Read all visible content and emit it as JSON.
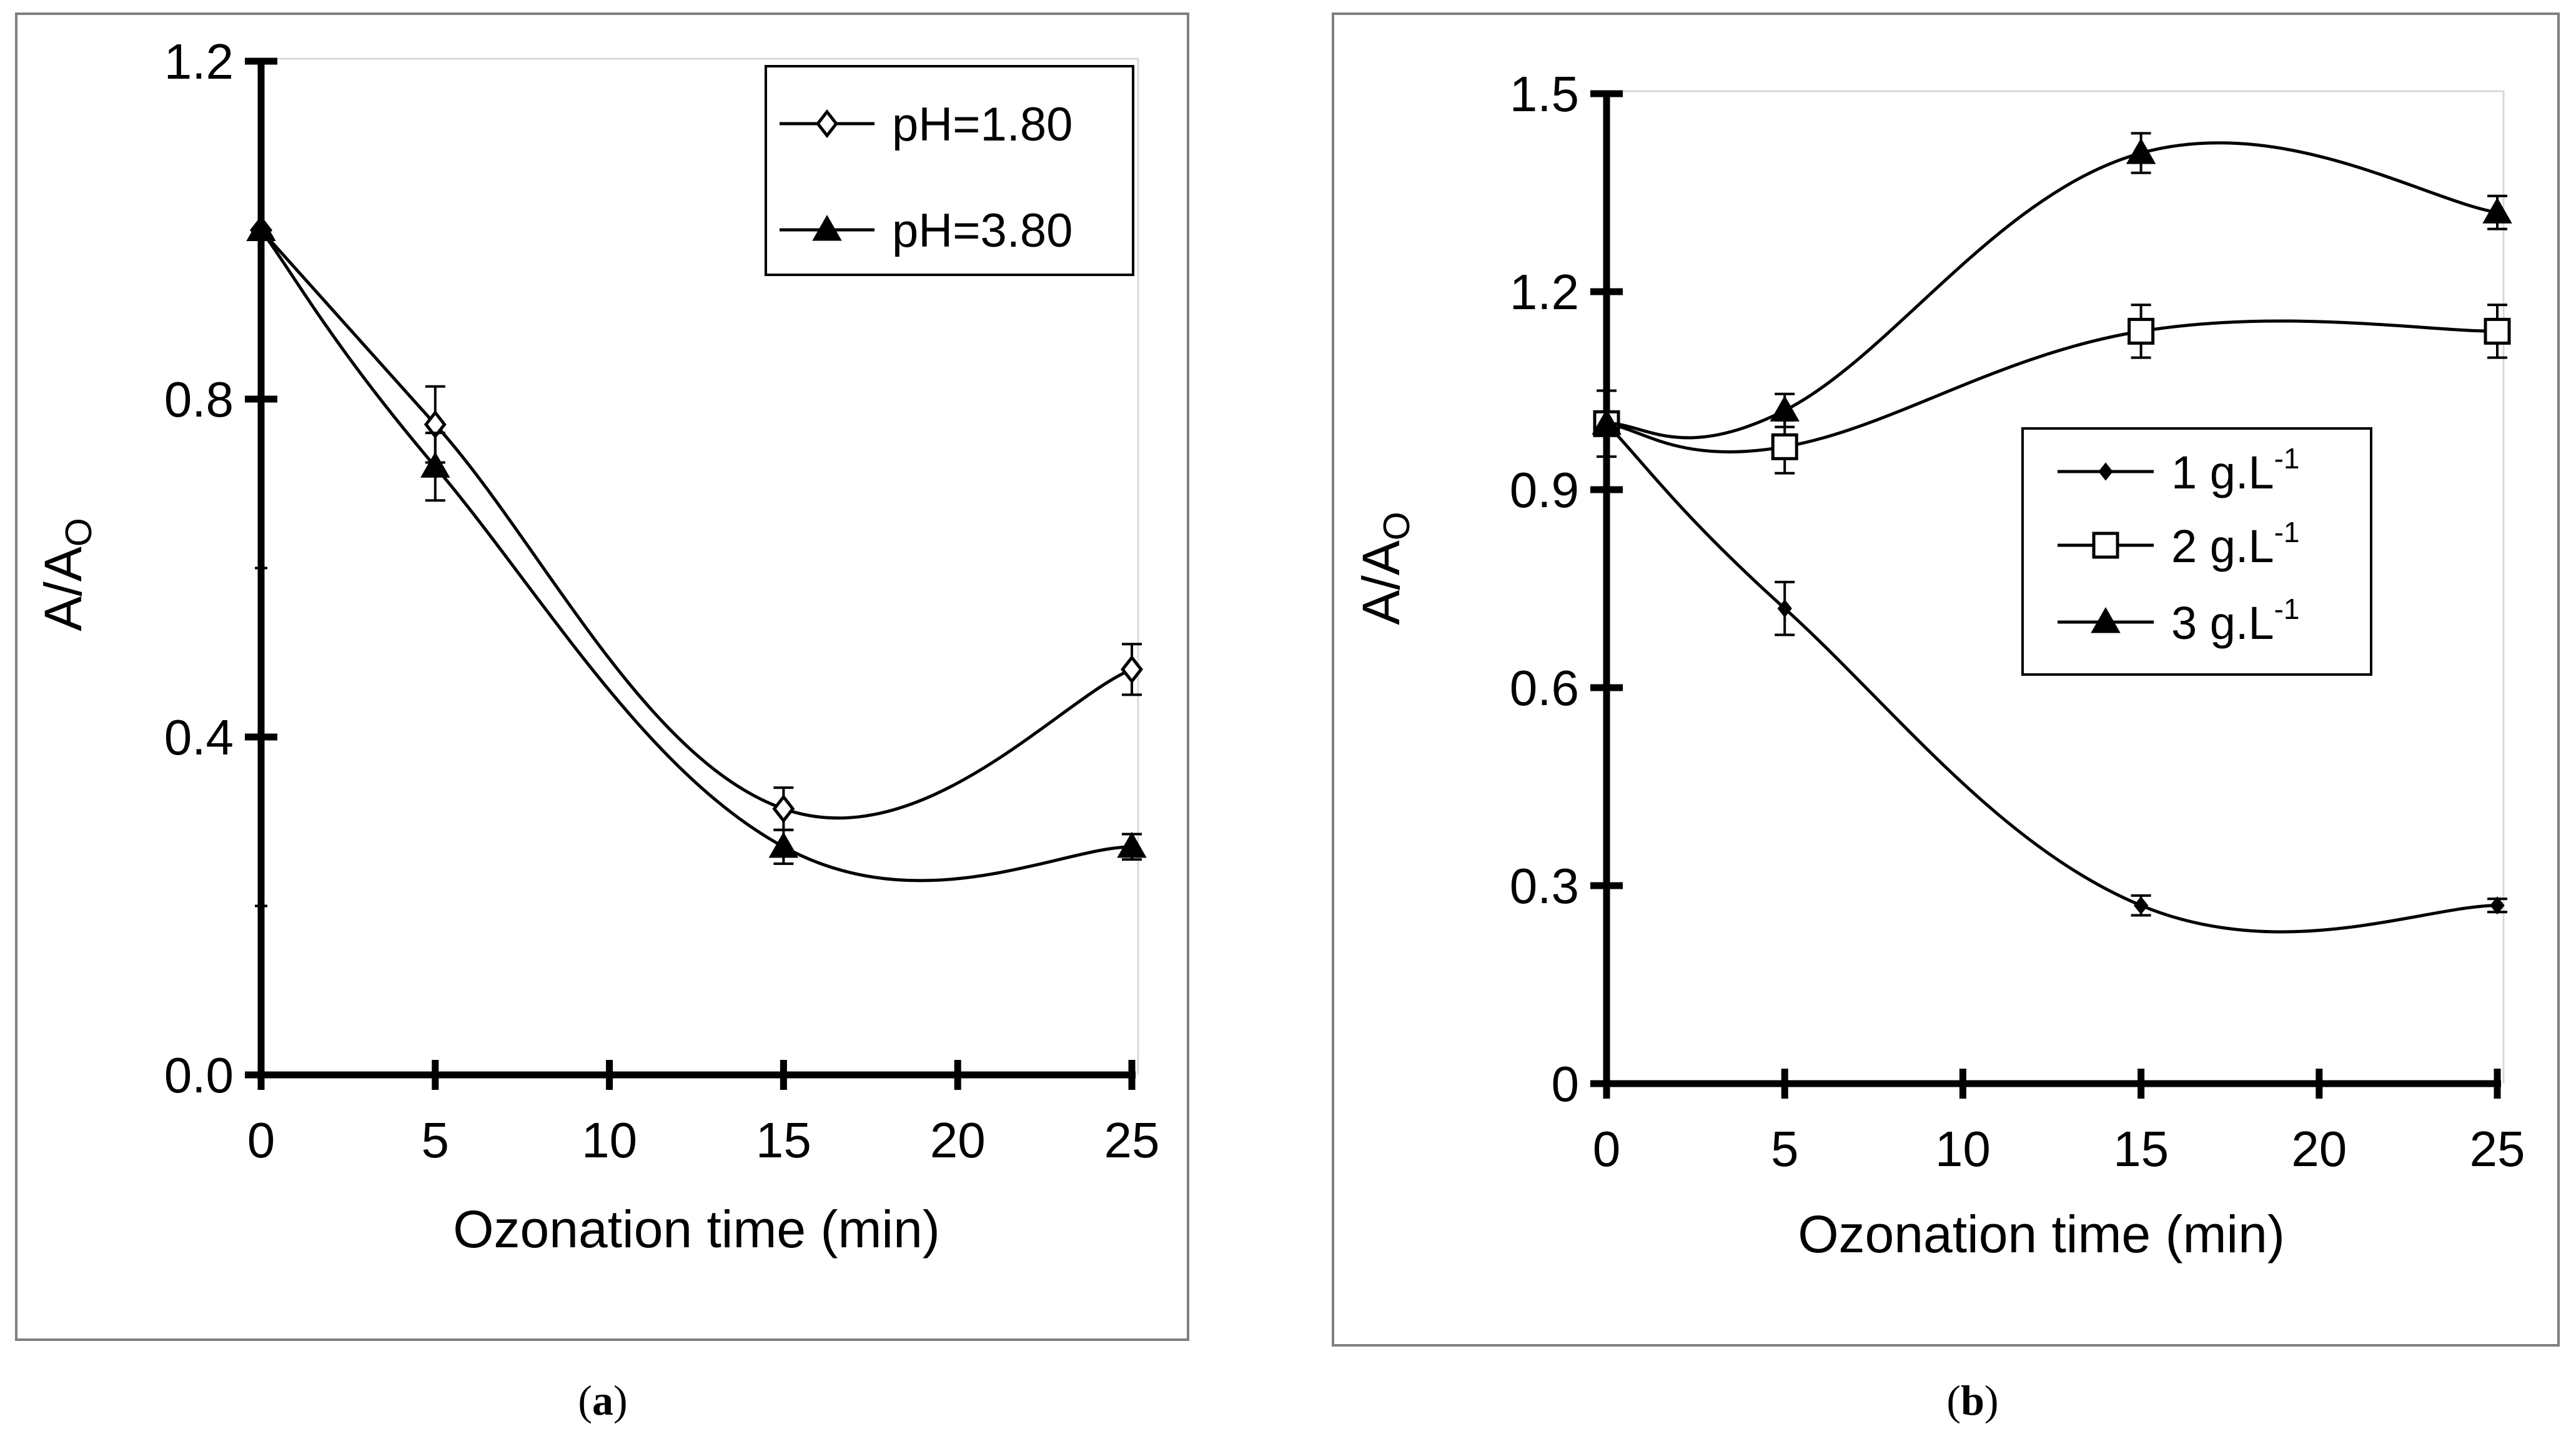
{
  "chart_data": [
    {
      "type": "line",
      "panel_label": "a",
      "xlabel": "Ozonation time (min)",
      "ylabel_main": "A/A",
      "ylabel_sub": "O",
      "xlim": [
        0,
        25
      ],
      "ylim": [
        0,
        1.2
      ],
      "xticks": [
        0,
        5,
        10,
        15,
        20,
        25
      ],
      "xtick_labels": [
        "0",
        "5",
        "10",
        "15",
        "20",
        "25"
      ],
      "yticks": [
        0,
        0.4,
        0.8,
        1.2
      ],
      "ytick_labels": [
        "0.0",
        "0.4",
        "0.8",
        "1.2"
      ],
      "legend_position": "top-right",
      "series": [
        {
          "name": "pH=1.80",
          "marker": "diamond-open",
          "x": [
            0,
            5,
            15,
            25
          ],
          "values": [
            1.0,
            0.77,
            0.315,
            0.48
          ],
          "errors": [
            0.0,
            0.045,
            0.025,
            0.03
          ]
        },
        {
          "name": "pH=3.80",
          "marker": "triangle-filled",
          "x": [
            0,
            5,
            15,
            25
          ],
          "values": [
            1.0,
            0.72,
            0.27,
            0.27
          ],
          "errors": [
            0.0,
            0.04,
            0.02,
            0.015
          ]
        }
      ]
    },
    {
      "type": "line",
      "panel_label": "b",
      "xlabel": "Ozonation time (min)",
      "ylabel_main": "A/A",
      "ylabel_sub": "O",
      "xlim": [
        0,
        25
      ],
      "ylim": [
        0,
        1.5
      ],
      "xticks": [
        0,
        5,
        10,
        15,
        20,
        25
      ],
      "xtick_labels": [
        "0",
        "5",
        "10",
        "15",
        "20",
        "25"
      ],
      "yticks": [
        0,
        0.3,
        0.6,
        0.9,
        1.2,
        1.5
      ],
      "ytick_labels": [
        "0",
        "0.3",
        "0.6",
        "0.9",
        "1.2",
        "1.5"
      ],
      "legend_position": "center-right",
      "series": [
        {
          "name": "1 g.L",
          "sup": "-1",
          "marker": "diamond-small-filled",
          "x": [
            0,
            5,
            15,
            25
          ],
          "values": [
            1.0,
            0.72,
            0.27,
            0.27
          ],
          "errors": [
            0.0,
            0.04,
            0.015,
            0.01
          ]
        },
        {
          "name": "2 g.L",
          "sup": "-1",
          "marker": "square-open",
          "x": [
            0,
            5,
            15,
            25
          ],
          "values": [
            1.0,
            0.965,
            1.14,
            1.14
          ],
          "errors": [
            0.05,
            0.04,
            0.04,
            0.04
          ]
        },
        {
          "name": "3 g.L",
          "sup": "-1",
          "marker": "triangle-filled",
          "x": [
            0,
            5,
            15,
            25
          ],
          "values": [
            1.0,
            1.02,
            1.41,
            1.32
          ],
          "errors": [
            0.0,
            0.025,
            0.03,
            0.025
          ]
        }
      ]
    }
  ]
}
